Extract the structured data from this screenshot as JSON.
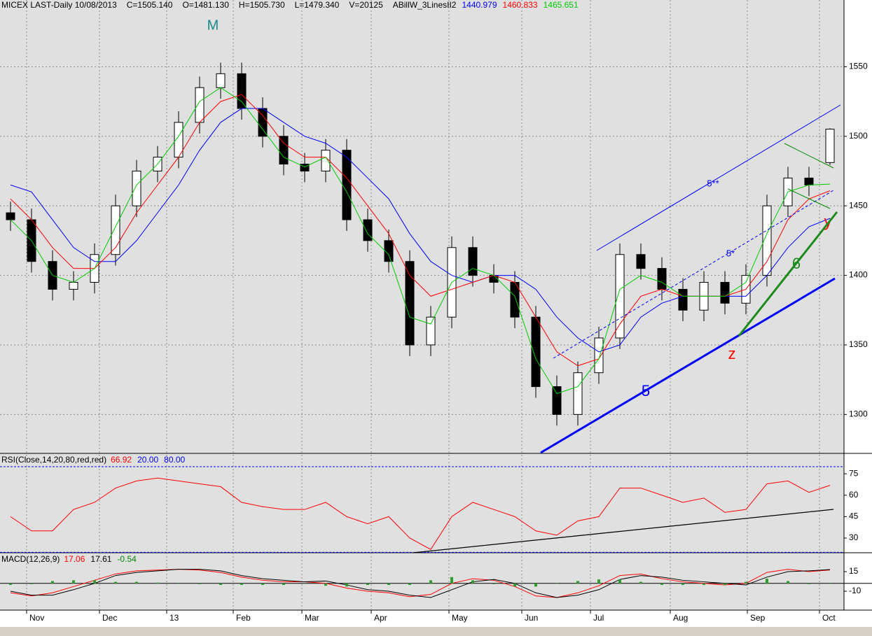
{
  "chart_data": [
    {
      "type": "candlestick",
      "title": "MICEX LAST-Daily  10/08/2013",
      "readouts": [
        "C=1505.140",
        "O=1481.130",
        "H=1505.730",
        "L=1479.340",
        "V=20125"
      ],
      "indicator": "ABillW_3LinesII2",
      "x": [
        3,
        9,
        15,
        21,
        27,
        33,
        39,
        45,
        51,
        57,
        63,
        69,
        75,
        81,
        87,
        93,
        99,
        105,
        111,
        117,
        123,
        129,
        135,
        141,
        147,
        153,
        159,
        165,
        171,
        177,
        183,
        189,
        195,
        201,
        207,
        213,
        219,
        225,
        231,
        237
      ],
      "candles": {
        "open": [
          1445,
          1440,
          1410,
          1390,
          1395,
          1415,
          1450,
          1475,
          1485,
          1510,
          1535,
          1545,
          1520,
          1500,
          1480,
          1475,
          1490,
          1440,
          1425,
          1410,
          1350,
          1370,
          1420,
          1400,
          1395,
          1370,
          1320,
          1300,
          1330,
          1355,
          1415,
          1405,
          1390,
          1375,
          1395,
          1380,
          1400,
          1450,
          1470,
          1481.13
        ],
        "high": [
          1453,
          1448,
          1418,
          1403,
          1423,
          1458,
          1483,
          1493,
          1518,
          1543,
          1553,
          1553,
          1528,
          1508,
          1488,
          1498,
          1498,
          1448,
          1433,
          1418,
          1378,
          1428,
          1428,
          1408,
          1403,
          1378,
          1328,
          1338,
          1363,
          1423,
          1423,
          1413,
          1398,
          1403,
          1403,
          1408,
          1458,
          1478,
          1478,
          1505.73
        ],
        "low": [
          1432,
          1402,
          1382,
          1382,
          1387,
          1407,
          1442,
          1467,
          1477,
          1502,
          1527,
          1512,
          1492,
          1472,
          1467,
          1467,
          1432,
          1417,
          1402,
          1342,
          1342,
          1362,
          1392,
          1387,
          1362,
          1312,
          1292,
          1292,
          1322,
          1347,
          1397,
          1382,
          1367,
          1367,
          1372,
          1372,
          1392,
          1442,
          1457,
          1479.34
        ],
        "close": [
          1440,
          1410,
          1390,
          1395,
          1415,
          1450,
          1475,
          1485,
          1510,
          1535,
          1545,
          1520,
          1500,
          1480,
          1475,
          1490,
          1440,
          1425,
          1410,
          1350,
          1370,
          1420,
          1400,
          1395,
          1370,
          1320,
          1300,
          1330,
          1355,
          1415,
          1405,
          1390,
          1375,
          1395,
          1380,
          1400,
          1450,
          1470,
          1465,
          1505.14
        ]
      },
      "series": [
        {
          "color": "#0000ff",
          "values": [
            1465,
            1460,
            1440,
            1420,
            1410,
            1410,
            1425,
            1445,
            1465,
            1490,
            1510,
            1520,
            1520,
            1510,
            1500,
            1495,
            1485,
            1470,
            1455,
            1430,
            1410,
            1400,
            1395,
            1400,
            1400,
            1390,
            1370,
            1355,
            1345,
            1350,
            1370,
            1380,
            1385,
            1385,
            1385,
            1385,
            1400,
            1420,
            1435,
            1440.979
          ]
        },
        {
          "color": "#ff0000",
          "values": [
            1455,
            1440,
            1420,
            1405,
            1405,
            1420,
            1445,
            1465,
            1485,
            1510,
            1525,
            1530,
            1515,
            1495,
            1485,
            1485,
            1470,
            1450,
            1430,
            1400,
            1385,
            1390,
            1395,
            1400,
            1395,
            1370,
            1345,
            1335,
            1340,
            1365,
            1385,
            1390,
            1385,
            1385,
            1385,
            1390,
            1410,
            1440,
            1455,
            1460.833
          ]
        },
        {
          "color": "#00cc00",
          "values": [
            1440,
            1425,
            1400,
            1395,
            1405,
            1435,
            1465,
            1480,
            1500,
            1525,
            1535,
            1525,
            1505,
            1485,
            1478,
            1485,
            1460,
            1430,
            1415,
            1370,
            1365,
            1395,
            1405,
            1400,
            1385,
            1340,
            1315,
            1320,
            1340,
            1390,
            1400,
            1395,
            1385,
            1385,
            1385,
            1395,
            1430,
            1460,
            1465,
            1465.651
          ]
        }
      ],
      "xlim": [
        0,
        241
      ],
      "ylim": [
        1272,
        1598
      ],
      "yticks": [
        1300,
        1350,
        1400,
        1450,
        1500,
        1550
      ],
      "grid": true,
      "annotations": [
        "M",
        "5**",
        "5*",
        "5",
        "6",
        "z",
        "y"
      ]
    },
    {
      "type": "line",
      "title": "RSI(Close,14,20,80,red,red)",
      "series": [
        {
          "color": "#ff0000",
          "values": [
            45,
            35,
            35,
            50,
            55,
            65,
            70,
            72,
            70,
            68,
            66,
            55,
            52,
            50,
            50,
            55,
            45,
            40,
            45,
            30,
            22,
            45,
            55,
            50,
            45,
            35,
            32,
            42,
            45,
            65,
            65,
            60,
            55,
            58,
            48,
            50,
            68,
            70,
            62,
            66.92
          ]
        }
      ],
      "levels": [
        {
          "value": 20,
          "label": "20.00"
        },
        {
          "value": 80,
          "label": "80.00"
        }
      ],
      "level_color": "#0000ff",
      "ylim": [
        19.7,
        89.3
      ],
      "yticks": [
        30,
        45,
        60,
        75
      ]
    },
    {
      "type": "line",
      "title": "MACD(12,26,9)",
      "series": [
        {
          "color": "#ff0000",
          "values": [
            -12,
            -16,
            -12,
            -4,
            4,
            12,
            16,
            17,
            18,
            17,
            14,
            8,
            4,
            2,
            2,
            0,
            -6,
            -10,
            -12,
            -17,
            -14,
            0,
            6,
            4,
            -4,
            -16,
            -18,
            -12,
            -3,
            10,
            12,
            6,
            2,
            0,
            -2,
            0,
            14,
            18,
            15,
            17.06
          ]
        },
        {
          "color": "#000000",
          "values": [
            -10,
            -15,
            -15,
            -8,
            0,
            10,
            14,
            16,
            18,
            18,
            16,
            10,
            6,
            4,
            2,
            3,
            -2,
            -8,
            -10,
            -15,
            -18,
            -8,
            2,
            5,
            0,
            -12,
            -18,
            -15,
            -8,
            5,
            10,
            8,
            4,
            2,
            0,
            -2,
            8,
            15,
            16,
            17.61
          ]
        },
        {
          "type": "bar",
          "color": "#2e9e2e",
          "values": [
            -2,
            -1,
            3,
            4,
            4,
            2,
            2,
            1,
            0,
            -1,
            -2,
            -2,
            -2,
            -2,
            0,
            -3,
            -4,
            -2,
            -2,
            -2,
            4,
            8,
            4,
            -1,
            -4,
            -4,
            0,
            3,
            5,
            5,
            2,
            -2,
            -2,
            -2,
            -2,
            2,
            6,
            3,
            -1,
            -0.54
          ]
        }
      ],
      "ylim": [
        -34,
        39
      ],
      "yticks": [
        -10,
        15
      ],
      "xticks": [
        {
          "value": 7.6,
          "label": "Nov"
        },
        {
          "value": 28.4,
          "label": "Dec"
        },
        {
          "value": 47.6,
          "label": "13"
        },
        {
          "value": 66.6,
          "label": "Feb"
        },
        {
          "value": 86.2,
          "label": "Mar"
        },
        {
          "value": 106,
          "label": "Apr"
        },
        {
          "value": 128.2,
          "label": "May"
        },
        {
          "value": 149,
          "label": "Jun"
        },
        {
          "value": 168.6,
          "label": "Jul"
        },
        {
          "value": 191.4,
          "label": "Aug"
        },
        {
          "value": 213.4,
          "label": "Sep"
        },
        {
          "value": 234,
          "label": "Oct"
        }
      ]
    }
  ]
}
